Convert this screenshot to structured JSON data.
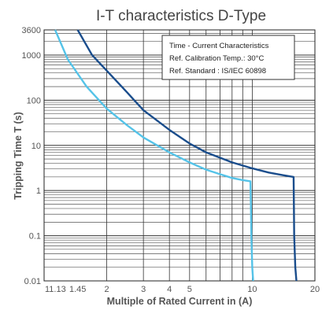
{
  "chart_data": {
    "type": "line",
    "title": "I-T characteristics D-Type",
    "xlabel": "Multiple of Rated Current in (A)",
    "ylabel": "Tripping Time T (s)",
    "x_scale": "log",
    "y_scale": "log",
    "xlim": [
      1,
      20
    ],
    "ylim": [
      0.01,
      3600
    ],
    "x_ticks": [
      {
        "value": 1,
        "label": "1"
      },
      {
        "value": 1.13,
        "label": "1.13"
      },
      {
        "value": 1.45,
        "label": "1.45"
      },
      {
        "value": 2,
        "label": "2"
      },
      {
        "value": 3,
        "label": "3"
      },
      {
        "value": 4,
        "label": "4"
      },
      {
        "value": 5,
        "label": "5"
      },
      {
        "value": 10,
        "label": "10"
      },
      {
        "value": 20,
        "label": "20"
      }
    ],
    "y_ticks": [
      {
        "value": 0.01,
        "label": "0.01"
      },
      {
        "value": 0.1,
        "label": "0.1"
      },
      {
        "value": 1,
        "label": "1"
      },
      {
        "value": 10,
        "label": "10"
      },
      {
        "value": 100,
        "label": "100"
      },
      {
        "value": 1000,
        "label": "1000"
      },
      {
        "value": 3600,
        "label": "3600"
      }
    ],
    "grid": true,
    "legend_position": "top-right",
    "legend_lines": [
      "Time - Current Characteristics",
      "Ref. Calibration Temp.: 30°C",
      "Ref. Standard : IS/IEC 60898"
    ],
    "series": [
      {
        "color": "#55c3e8",
        "points": [
          [
            1.13,
            3600
          ],
          [
            1.3,
            800
          ],
          [
            1.6,
            200
          ],
          [
            2,
            65
          ],
          [
            2.5,
            28
          ],
          [
            3,
            15
          ],
          [
            4,
            7
          ],
          [
            5,
            4.2
          ],
          [
            6,
            2.9
          ],
          [
            7,
            2.3
          ],
          [
            8,
            1.9
          ],
          [
            9,
            1.7
          ],
          [
            9.8,
            1.6
          ],
          [
            9.85,
            0.5
          ],
          [
            9.9,
            0.1
          ],
          [
            10,
            0.02
          ],
          [
            10.1,
            0.01
          ]
        ]
      },
      {
        "color": "#1a4d8c",
        "points": [
          [
            1.45,
            3600
          ],
          [
            1.7,
            1000
          ],
          [
            2,
            450
          ],
          [
            2.5,
            150
          ],
          [
            3,
            60
          ],
          [
            4,
            22
          ],
          [
            5,
            11
          ],
          [
            6,
            7
          ],
          [
            8,
            4.2
          ],
          [
            10,
            3.1
          ],
          [
            12,
            2.5
          ],
          [
            14,
            2.2
          ],
          [
            15.8,
            2
          ],
          [
            15.85,
            0.5
          ],
          [
            15.9,
            0.1
          ],
          [
            16.1,
            0.02
          ],
          [
            16.3,
            0.01
          ]
        ]
      }
    ]
  }
}
